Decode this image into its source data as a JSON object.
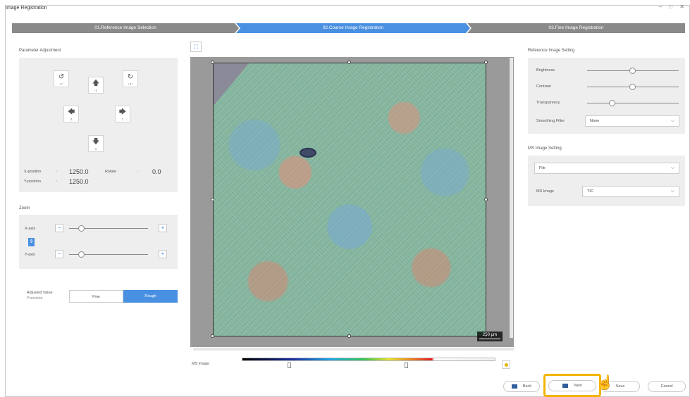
{
  "window": {
    "title": "Image Registration",
    "controls": "– □ ✕"
  },
  "steps": [
    {
      "label": "01.Reference Image Selection",
      "active": false
    },
    {
      "label": "02.Coarse Image Registration",
      "active": true
    },
    {
      "label": "03.Fine Image Registration",
      "active": false
    }
  ],
  "left": {
    "param_title": "Parameter Adjustment",
    "buttons": {
      "rotate_ccw": {
        "icon": "rotate-ccw-icon",
        "sub": "-1°"
      },
      "up": {
        "icon": "arrow-up-icon",
        "sub": "-1"
      },
      "rotate_cw": {
        "icon": "rotate-cw-icon",
        "sub": "+1°"
      },
      "left": {
        "icon": "arrow-left-icon",
        "sub": "-1"
      },
      "right": {
        "icon": "arrow-right-icon",
        "sub": "1"
      },
      "down": {
        "icon": "arrow-down-icon",
        "sub": "1"
      }
    },
    "x_label": "X-position",
    "y_label": "Y-position",
    "sep": ":",
    "x_value": "1250.0",
    "y_value": "1250.0",
    "rotate_label": "Rotate",
    "rotate_value": "0.0",
    "zoom_title": "Zoom",
    "x_axis": "X-axis",
    "y_axis": "Y-axis",
    "adjusted_label": "Adjusted Value",
    "precision_label": "Precision",
    "precision_options": [
      "Fine",
      "Rough"
    ],
    "precision_selected": "Rough"
  },
  "center": {
    "scale_bar": "250 μm",
    "ms_image_label": "MS Image"
  },
  "right": {
    "ref_title": "Reference Image Setting",
    "brightness": "Brightness",
    "contrast": "Contrast",
    "transparency": "Transparency",
    "smoothing_label": "Smoothing Filter",
    "smoothing_value": "None",
    "ms_title": "MS Image Setting",
    "file_value": "File",
    "ms_image_label": "MS Image",
    "ms_image_value": "TIC"
  },
  "footer": {
    "back": "Back",
    "next": "Next",
    "save": "Save",
    "cancel": "Cancel"
  },
  "colors": {
    "accent": "#4a90e2",
    "highlight": "#f3b400",
    "step_inactive": "#8a8a8a"
  }
}
